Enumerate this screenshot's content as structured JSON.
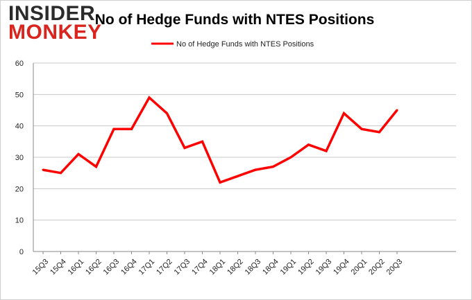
{
  "logo": {
    "line1": "INSIDER",
    "line2": "MONKEY",
    "color_dark": "#2b2b2b",
    "color_red": "#d9251d"
  },
  "chart_data": {
    "type": "line",
    "title": "No of Hedge Funds with NTES Positions",
    "xlabel": "",
    "ylabel": "",
    "categories": [
      "15Q3",
      "15Q4",
      "16Q1",
      "16Q2",
      "16Q3",
      "16Q4",
      "17Q1",
      "17Q2",
      "17Q3",
      "17Q4",
      "18Q1",
      "18Q2",
      "18Q3",
      "18Q4",
      "19Q1",
      "19Q2",
      "19Q3",
      "19Q4",
      "20Q1",
      "20Q2",
      "20Q3"
    ],
    "series": [
      {
        "name": "No of Hedge Funds with NTES  Positions",
        "color": "#ff0000",
        "values": [
          26,
          25,
          31,
          27,
          39,
          39,
          49,
          44,
          33,
          35,
          22,
          24,
          26,
          27,
          30,
          34,
          32,
          44,
          39,
          38,
          45
        ]
      }
    ],
    "ylim": [
      0,
      60
    ],
    "yticks": [
      0,
      10,
      20,
      30,
      40,
      50,
      60
    ],
    "grid": true,
    "legend_position": "top-center"
  }
}
